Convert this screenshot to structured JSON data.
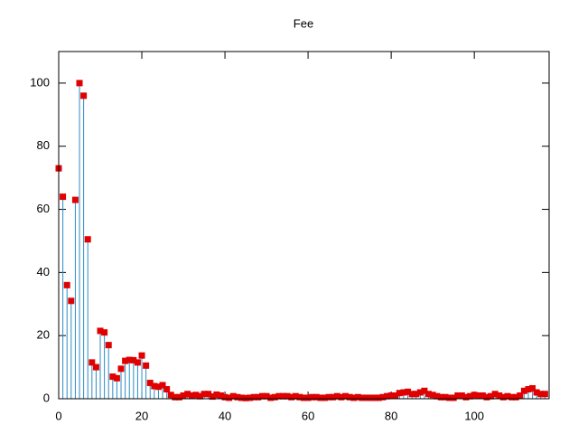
{
  "chart_data": {
    "type": "impulses",
    "title": "Fee",
    "x": [
      0,
      1,
      2,
      3,
      4,
      5,
      6,
      7,
      8,
      9,
      10,
      11,
      12,
      13,
      14,
      15,
      16,
      17,
      18,
      19,
      20,
      21,
      22,
      23,
      24,
      25,
      26,
      27,
      28,
      29,
      30,
      31,
      32,
      33,
      34,
      35,
      36,
      37,
      38,
      39,
      40,
      41,
      42,
      43,
      44,
      45,
      46,
      47,
      48,
      49,
      50,
      51,
      52,
      53,
      54,
      55,
      56,
      57,
      58,
      59,
      60,
      61,
      62,
      63,
      64,
      65,
      66,
      67,
      68,
      69,
      70,
      71,
      72,
      73,
      74,
      75,
      76,
      77,
      78,
      79,
      80,
      81,
      82,
      83,
      84,
      85,
      86,
      87,
      88,
      89,
      90,
      91,
      92,
      93,
      94,
      95,
      96,
      97,
      98,
      99,
      100,
      101,
      102,
      103,
      104,
      105,
      106,
      107,
      108,
      109,
      110,
      111,
      112,
      113,
      114,
      115,
      116,
      117
    ],
    "values": [
      73,
      64,
      36,
      31,
      63,
      100,
      96,
      50.5,
      11.5,
      10,
      21.5,
      21,
      17,
      7,
      6.5,
      9.5,
      12,
      12.3,
      12.2,
      11.5,
      13.7,
      10.5,
      5,
      4,
      3.8,
      4.3,
      3,
      1.2,
      0.5,
      0.5,
      1,
      1.5,
      1,
      1.2,
      0.8,
      1.5,
      1.5,
      0.7,
      1.3,
      1,
      0.5,
      0.3,
      0.8,
      0.5,
      0.3,
      0.2,
      0.3,
      0.5,
      0.5,
      0.8,
      0.8,
      0.3,
      0.5,
      0.8,
      0.8,
      0.8,
      0.5,
      0.8,
      0.5,
      0.3,
      0.3,
      0.5,
      0.5,
      0.3,
      0.3,
      0.5,
      0.5,
      0.8,
      0.5,
      0.8,
      0.5,
      0.3,
      0.5,
      0.3,
      0.3,
      0.3,
      0.3,
      0.3,
      0.5,
      0.8,
      1,
      1,
      1.8,
      2,
      2.2,
      1.5,
      1.5,
      2,
      2.5,
      1.5,
      1.2,
      0.8,
      0.5,
      0.5,
      0.3,
      0.3,
      1,
      1,
      0.5,
      0.8,
      1.2,
      1,
      1,
      0.5,
      0.8,
      1.5,
      1,
      0.5,
      0.8,
      0.5,
      0.5,
      1,
      2.5,
      3,
      3.3,
      2,
      1.5,
      1.5
    ],
    "color": "#2b8cc4",
    "marker_color": "#e00000",
    "xlim": [
      0,
      118
    ],
    "xticks": [
      0,
      20,
      40,
      60,
      80,
      100
    ],
    "ylim": [
      0,
      110
    ],
    "yticks": [
      0,
      20,
      40,
      60,
      80,
      100
    ]
  }
}
